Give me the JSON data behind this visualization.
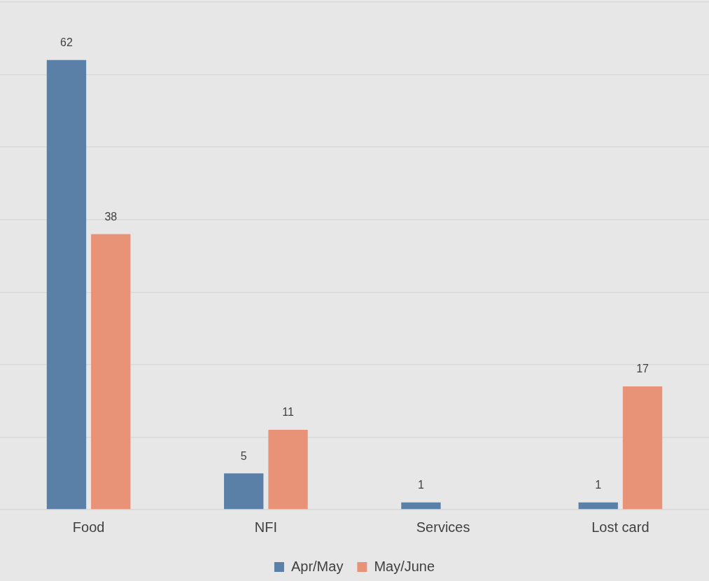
{
  "chart_data": {
    "type": "bar",
    "categories": [
      "Food",
      "NFI",
      "Services",
      "Lost card"
    ],
    "series": [
      {
        "name": "Apr/May",
        "color": "#5b80a8",
        "values": [
          62,
          5,
          1,
          1
        ]
      },
      {
        "name": "May/June",
        "color": "#e89278",
        "values": [
          38,
          11,
          null,
          17
        ]
      }
    ],
    "ylim": [
      0,
      70
    ],
    "grid": "y",
    "tick_labels": "x",
    "legend": "bottom",
    "data_labels": true
  }
}
